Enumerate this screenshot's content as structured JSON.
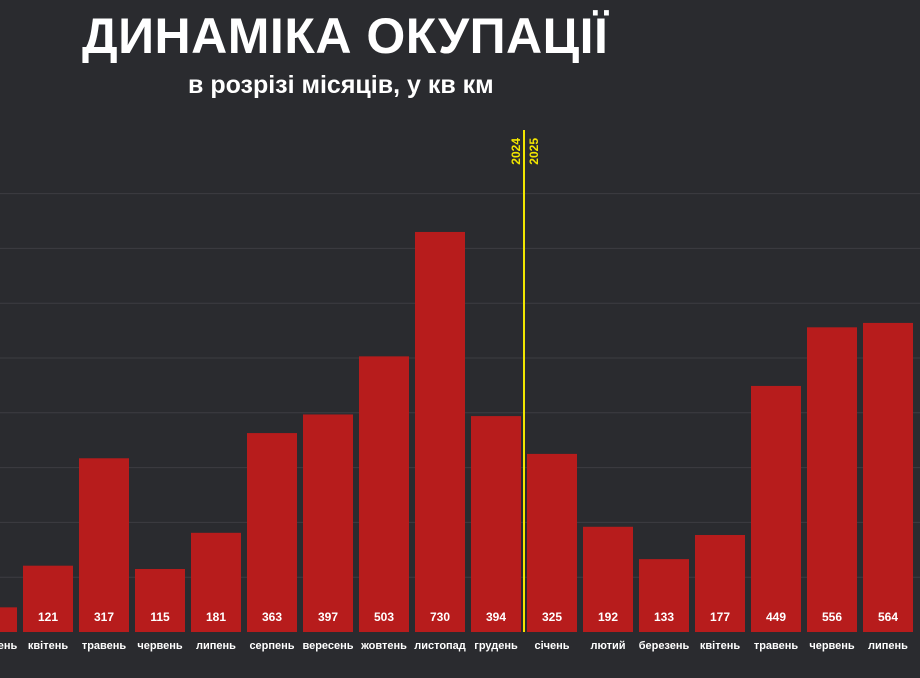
{
  "colors": {
    "background": "#2a2b2f",
    "bar": "#b71c1c",
    "gridline": "#3c3d42",
    "divider": "#f2e600",
    "text": "#ffffff"
  },
  "chart_data": {
    "type": "bar",
    "title": "ДИНАМІКА ОКУПАЦІЇ",
    "subtitle": "в розрізі місяців, у кв км",
    "xlabel": "",
    "ylabel": "",
    "ylim": [
      0,
      800
    ],
    "grid": true,
    "legend": "none",
    "categories": [
      "березень",
      "квітень",
      "травень",
      "червень",
      "липень",
      "серпень",
      "вересень",
      "жовтень",
      "листопад",
      "грудень",
      "січень",
      "лютий",
      "березень",
      "квітень",
      "травень",
      "червень",
      "липень"
    ],
    "values": [
      45,
      121,
      317,
      115,
      181,
      363,
      397,
      503,
      730,
      394,
      325,
      192,
      133,
      177,
      449,
      556,
      564
    ],
    "value_labels": [
      "",
      "121",
      "317",
      "115",
      "181",
      "363",
      "397",
      "503",
      "730",
      "394",
      "325",
      "192",
      "133",
      "177",
      "449",
      "556",
      "564"
    ],
    "year_divider": {
      "after_category_index": 9,
      "left_label": "2024",
      "right_label": "2025"
    }
  }
}
